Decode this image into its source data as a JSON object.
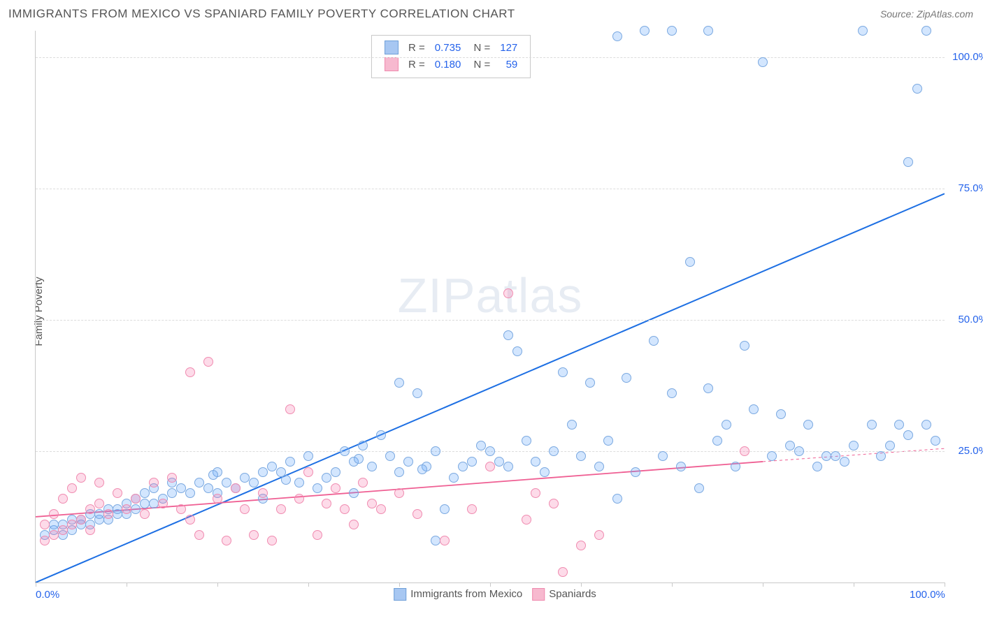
{
  "title": "IMMIGRANTS FROM MEXICO VS SPANIARD FAMILY POVERTY CORRELATION CHART",
  "source_label": "Source: ",
  "source_name": "ZipAtlas.com",
  "ylabel": "Family Poverty",
  "watermark": "ZIPatlas",
  "chart": {
    "type": "scatter",
    "xlim": [
      0,
      100
    ],
    "ylim": [
      0,
      105
    ],
    "x_ticks": [
      0,
      10,
      20,
      30,
      40,
      50,
      60,
      70,
      80,
      90,
      100
    ],
    "y_gridlines": [
      25,
      50,
      75,
      100
    ],
    "x_axis_labels": [
      {
        "v": 0,
        "t": "0.0%"
      },
      {
        "v": 100,
        "t": "100.0%"
      }
    ],
    "y_axis_labels": [
      {
        "v": 25,
        "t": "25.0%"
      },
      {
        "v": 50,
        "t": "50.0%"
      },
      {
        "v": 75,
        "t": "75.0%"
      },
      {
        "v": 100,
        "t": "100.0%"
      }
    ],
    "background_color": "#ffffff",
    "grid_color": "#dcdcdc",
    "axis_color": "#c9c9c9",
    "marker_radius": 7,
    "marker_border_width": 1.5
  },
  "series": [
    {
      "name": "Immigrants from Mexico",
      "color_fill": "rgba(96,165,250,0.28)",
      "color_stroke": "#7aa8e0",
      "color_swatch_fill": "#a7c7f2",
      "color_swatch_border": "#6f9fd8",
      "R": "0.735",
      "N": "127",
      "trend": {
        "x1": 0,
        "y1": 0,
        "x2": 100,
        "y2": 74,
        "color": "#1d6fe3",
        "width": 2,
        "dash": "none"
      },
      "points": [
        [
          1,
          9
        ],
        [
          2,
          10
        ],
        [
          2,
          11
        ],
        [
          3,
          9
        ],
        [
          3,
          11
        ],
        [
          4,
          10
        ],
        [
          4,
          12
        ],
        [
          5,
          11
        ],
        [
          5,
          12
        ],
        [
          6,
          11
        ],
        [
          6,
          13
        ],
        [
          7,
          12
        ],
        [
          7,
          13
        ],
        [
          8,
          12
        ],
        [
          8,
          14
        ],
        [
          9,
          13
        ],
        [
          9,
          14
        ],
        [
          10,
          13
        ],
        [
          10,
          15
        ],
        [
          11,
          14
        ],
        [
          11,
          16
        ],
        [
          12,
          15
        ],
        [
          12,
          17
        ],
        [
          13,
          15
        ],
        [
          13,
          18
        ],
        [
          14,
          16
        ],
        [
          15,
          17
        ],
        [
          15,
          19
        ],
        [
          16,
          18
        ],
        [
          17,
          17
        ],
        [
          18,
          19
        ],
        [
          19,
          18
        ],
        [
          20,
          21
        ],
        [
          20,
          17
        ],
        [
          21,
          19
        ],
        [
          22,
          18
        ],
        [
          23,
          20
        ],
        [
          24,
          19
        ],
        [
          25,
          21
        ],
        [
          25,
          16
        ],
        [
          26,
          22
        ],
        [
          27,
          21
        ],
        [
          28,
          23
        ],
        [
          29,
          19
        ],
        [
          30,
          24
        ],
        [
          31,
          18
        ],
        [
          32,
          20
        ],
        [
          33,
          21
        ],
        [
          34,
          25
        ],
        [
          35,
          23
        ],
        [
          35,
          17
        ],
        [
          36,
          26
        ],
        [
          37,
          22
        ],
        [
          38,
          28
        ],
        [
          39,
          24
        ],
        [
          40,
          21
        ],
        [
          40,
          38
        ],
        [
          41,
          23
        ],
        [
          42,
          36
        ],
        [
          43,
          22
        ],
        [
          44,
          8
        ],
        [
          44,
          25
        ],
        [
          45,
          14
        ],
        [
          46,
          20
        ],
        [
          47,
          22
        ],
        [
          48,
          23
        ],
        [
          49,
          26
        ],
        [
          50,
          25
        ],
        [
          51,
          23
        ],
        [
          52,
          22
        ],
        [
          52,
          47
        ],
        [
          53,
          44
        ],
        [
          54,
          27
        ],
        [
          55,
          23
        ],
        [
          56,
          21
        ],
        [
          57,
          25
        ],
        [
          58,
          40
        ],
        [
          59,
          30
        ],
        [
          60,
          24
        ],
        [
          61,
          38
        ],
        [
          62,
          22
        ],
        [
          63,
          27
        ],
        [
          64,
          16
        ],
        [
          64,
          104
        ],
        [
          65,
          39
        ],
        [
          66,
          21
        ],
        [
          67,
          105
        ],
        [
          68,
          46
        ],
        [
          69,
          24
        ],
        [
          70,
          36
        ],
        [
          70,
          105
        ],
        [
          71,
          22
        ],
        [
          72,
          61
        ],
        [
          73,
          18
        ],
        [
          74,
          37
        ],
        [
          74,
          105
        ],
        [
          75,
          27
        ],
        [
          76,
          30
        ],
        [
          77,
          22
        ],
        [
          78,
          45
        ],
        [
          79,
          33
        ],
        [
          80,
          99
        ],
        [
          81,
          24
        ],
        [
          82,
          32
        ],
        [
          83,
          26
        ],
        [
          84,
          25
        ],
        [
          85,
          30
        ],
        [
          86,
          22
        ],
        [
          87,
          24
        ],
        [
          88,
          24
        ],
        [
          89,
          23
        ],
        [
          90,
          26
        ],
        [
          91,
          105
        ],
        [
          92,
          30
        ],
        [
          93,
          24
        ],
        [
          94,
          26
        ],
        [
          95,
          30
        ],
        [
          96,
          80
        ],
        [
          96,
          28
        ],
        [
          97,
          94
        ],
        [
          98,
          30
        ],
        [
          98,
          105
        ],
        [
          99,
          27
        ],
        [
          19.5,
          20.5
        ],
        [
          27.5,
          19.5
        ],
        [
          35.5,
          23.5
        ],
        [
          42.5,
          21.5
        ]
      ]
    },
    {
      "name": "Spaniards",
      "color_fill": "rgba(248,113,167,0.25)",
      "color_stroke": "#f08bb0",
      "color_swatch_fill": "#f7b9cf",
      "color_swatch_border": "#ef8aae",
      "R": "0.180",
      "N": "59",
      "trend": {
        "x1": 0,
        "y1": 12.5,
        "x2": 80,
        "y2": 23,
        "color": "#ef5f93",
        "width": 1.8,
        "dash": "none",
        "extend": {
          "x1": 80,
          "y1": 23,
          "x2": 100,
          "y2": 25.5,
          "dash": "4 4"
        }
      },
      "points": [
        [
          1,
          8
        ],
        [
          1,
          11
        ],
        [
          2,
          9
        ],
        [
          2,
          13
        ],
        [
          3,
          10
        ],
        [
          3,
          16
        ],
        [
          4,
          11
        ],
        [
          4,
          18
        ],
        [
          5,
          12
        ],
        [
          5,
          20
        ],
        [
          6,
          10
        ],
        [
          6,
          14
        ],
        [
          7,
          15
        ],
        [
          7,
          19
        ],
        [
          8,
          13
        ],
        [
          9,
          17
        ],
        [
          10,
          14
        ],
        [
          11,
          16
        ],
        [
          12,
          13
        ],
        [
          13,
          19
        ],
        [
          14,
          15
        ],
        [
          15,
          20
        ],
        [
          16,
          14
        ],
        [
          17,
          40
        ],
        [
          17,
          12
        ],
        [
          18,
          9
        ],
        [
          19,
          42
        ],
        [
          20,
          16
        ],
        [
          21,
          8
        ],
        [
          22,
          18
        ],
        [
          23,
          14
        ],
        [
          24,
          9
        ],
        [
          25,
          17
        ],
        [
          26,
          8
        ],
        [
          27,
          14
        ],
        [
          28,
          33
        ],
        [
          29,
          16
        ],
        [
          30,
          21
        ],
        [
          31,
          9
        ],
        [
          32,
          15
        ],
        [
          33,
          18
        ],
        [
          34,
          14
        ],
        [
          35,
          11
        ],
        [
          36,
          19
        ],
        [
          37,
          15
        ],
        [
          38,
          14
        ],
        [
          40,
          17
        ],
        [
          42,
          13
        ],
        [
          45,
          8
        ],
        [
          48,
          14
        ],
        [
          50,
          22
        ],
        [
          52,
          55
        ],
        [
          54,
          12
        ],
        [
          55,
          17
        ],
        [
          57,
          15
        ],
        [
          58,
          2
        ],
        [
          60,
          7
        ],
        [
          62,
          9
        ],
        [
          78,
          25
        ]
      ]
    }
  ],
  "legend_top": {
    "R_label": "R =",
    "N_label": "N ="
  },
  "legend_bottom": {
    "items": [
      "Immigrants from Mexico",
      "Spaniards"
    ]
  }
}
